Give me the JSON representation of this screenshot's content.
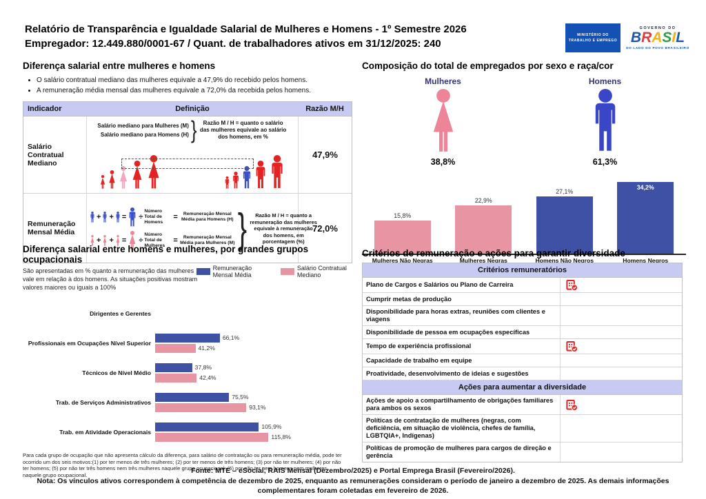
{
  "header": {
    "title_line1": "Relatório de Transparência e Igualdade Salarial de Mulheres e Homens - 1º Semestre 2026",
    "title_line2": "Empregador: 12.449.880/0001-67 / Quant. de trabalhadores ativos em 31/12/2025: 240",
    "logo_mte": "Ministério do Trabalho e Emprego",
    "logo_gov_top": "GOVERNO DO",
    "logo_gov_brand": "BRASIL",
    "logo_gov_tagline": "DO LADO DO POVO BRASILEIRO"
  },
  "salary_gap": {
    "title": "Diferença salarial entre mulheres e homens",
    "bullets": [
      "O salário contratual mediano das mulheres equivale a 47,9% do recebido pelos homens.",
      "A remuneração média mensal das mulheres equivale a 72,0% da recebida pelos homens."
    ],
    "table": {
      "headers": [
        "Indicador",
        "Definição",
        "Razão M/H"
      ],
      "row1": {
        "indicator": "Salário Contratual Mediano",
        "def_line1": "Salário mediano para Mulheres (M)",
        "def_line2": "Salário mediano para Homens (H)",
        "def_note": "Razão M / H = quanto o salário das mulheres equivale ao salário dos homens, em %",
        "ratio": "47,9%"
      },
      "row2": {
        "indicator": "Remuneração Mensal Média",
        "men_divisor": "Número Total de Homens",
        "men_result": "Remuneração Mensal Média para Homens (H)",
        "women_divisor": "Número Total de Mulheres",
        "women_result": "Remuneração Mensal Média para Mulheres (M)",
        "def_note": "Razão M / H = quanto a remuneração das mulheres equivale à remuneração dos homens, em porcentagem (%)",
        "ratio": "72,0%",
        "plus": "+",
        "equals": "=",
        "divide": "÷"
      }
    }
  },
  "composition": {
    "title": "Composição do total de empregados por sexo e raça/cor",
    "women_label": "Mulheres",
    "women_pct": "38,8%",
    "men_label": "Homens",
    "men_pct": "61,3%"
  },
  "occupational": {
    "title": "Diferença salarial entre homens e mulheres, por grandes grupos ocupacionais",
    "subtitle": "São apresentadas em % quanto a remuneração das mulheres vale em relação à dos homens. As situações positivas mostram valores maiores ou iguais a 100%",
    "footnote": "Para cada grupo de ocupação que não apresenta cálculo da diferença, para salário de contratação ou para remuneração média, pode ter ocorrido um dos seis motivos:(1) por ter menos de três mulheres; (2) por ter menos de três homens; (3) por não ter mulheres; (4) por não ter homens; (5) por não ter três homens nem três mulheres naquele grupo ocupacional; (6) por não ter nem homens nem mulheres naquele grupo ocupacional."
  },
  "chart_data": [
    {
      "type": "bar",
      "title": "Composição do total de empregados por sexo e raça/cor",
      "categories": [
        "Mulheres Não Negras",
        "Mulheres Negras",
        "Homens Não Negros",
        "Homens Negros"
      ],
      "values": [
        15.8,
        22.9,
        27.1,
        34.2
      ],
      "labels": [
        "15,8%",
        "22,9%",
        "27,1%",
        "34,2%"
      ],
      "colors": [
        "#e795a3",
        "#e795a3",
        "#3f51a5",
        "#3f51a5"
      ],
      "label_inside": [
        false,
        false,
        false,
        true
      ],
      "summary_icons": {
        "women_pct": 38.8,
        "men_pct": 61.3
      },
      "xlabel": "",
      "ylabel": "",
      "ylim": [
        0,
        38
      ],
      "grid": false,
      "legend": "none"
    },
    {
      "type": "bar",
      "orientation": "horizontal",
      "title": "Diferença salarial entre homens e mulheres, por grandes grupos ocupacionais",
      "categories": [
        "Dirigentes e Gerentes",
        "Profissionais em Ocupações Nível Superior",
        "Técnicos de Nível Médio",
        "Trab. de Serviços Administrativos",
        "Trab. em Atividade Operacionais"
      ],
      "series": [
        {
          "name": "Remuneração Mensal Média",
          "color": "#3f51a5",
          "values": [
            null,
            66.1,
            37.8,
            75.5,
            105.9
          ],
          "labels": [
            "",
            "66,1%",
            "37,8%",
            "75,5%",
            "105,9%"
          ]
        },
        {
          "name": "Salário Contratual Mediano",
          "color": "#e795a3",
          "values": [
            null,
            41.2,
            42.4,
            93.1,
            115.8
          ],
          "labels": [
            "",
            "41,2%",
            "42,4%",
            "93,1%",
            "115,8%"
          ]
        }
      ],
      "xlabel": "",
      "ylabel": "",
      "xlim": [
        0,
        120
      ],
      "grid": false,
      "legend_position": "top"
    }
  ],
  "criteria": {
    "title": "Critérios de remuneração e ações para garantir diversidade",
    "sections": [
      {
        "header": "Critérios remuneratórios",
        "rows": [
          {
            "label": "Plano de Cargos e Salários ou Plano de Carreira",
            "checked": true
          },
          {
            "label": "Cumprir metas de produção",
            "checked": false
          },
          {
            "label": "Disponibilidade para horas extras, reuniões com clientes e viagens",
            "checked": false
          },
          {
            "label": "Disponibilidade de pessoa em ocupações específicas",
            "checked": false
          },
          {
            "label": "Tempo de experiência profissional",
            "checked": true
          },
          {
            "label": "Capacidade de trabalho em equipe",
            "checked": false
          },
          {
            "label": "Proatividade, desenvolvimento de ideias e sugestões",
            "checked": false
          }
        ]
      },
      {
        "header": "Ações para aumentar a diversidade",
        "rows": [
          {
            "label": "Ações de apoio a compartilhamento de obrigações familiares para ambos os sexos",
            "checked": true
          },
          {
            "label": "Políticas de contratação de mulheres (negras, com deficiência, em situação de violência, chefes de família, LGBTQIA+, Indígenas)",
            "checked": false
          },
          {
            "label": "Políticas de promoção de mulheres para cargos de direção e gerência",
            "checked": false
          }
        ]
      }
    ]
  },
  "footer": {
    "line1": "Fonte: MTE – eSocial, RAIS Mensal (Dezembro/2025) e Portal Emprega Brasil (Fevereiro/2026).",
    "line2": "Nota: Os vínculos ativos correspondem à competência de dezembro de 2025, enquanto as remunerações consideram o período de janeiro a dezembro de 2025. As demais informações complementares foram coletadas em fevereiro de 2026."
  },
  "colors": {
    "bar_blue": "#3f51a5",
    "bar_pink": "#e795a3",
    "icon_woman_pink": "#ec8598",
    "icon_man_blue": "#3a46c8",
    "silhouette_red": "#e32222",
    "silhouette_pink_highlight": "#f0a6bc",
    "silhouette_blue_highlight": "#3a50c8",
    "table_header_lavender": "#c7cbf4",
    "gov_blue": "#1351b4",
    "criteria_check_red": "#dd2b2b",
    "navy_label": "#333370",
    "brand_letters": [
      "#2057a7",
      "#e23b3b",
      "#f2b211",
      "#2f9e45",
      "#f2b211",
      "#2057a7"
    ]
  }
}
